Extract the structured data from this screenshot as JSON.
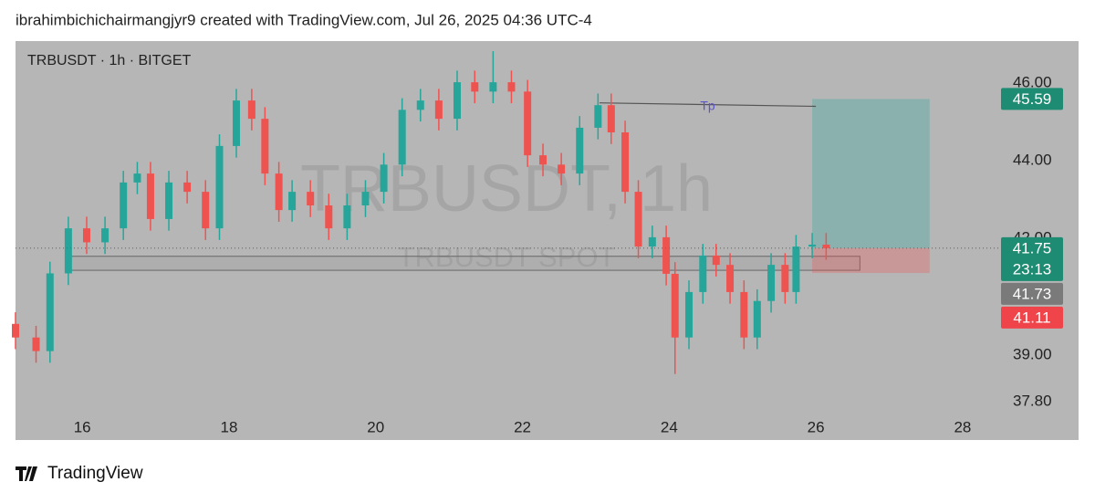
{
  "header": "ibrahimbichichairmangjyr9 created with TradingView.com, Jul 26, 2025 04:36 UTC-4",
  "footer": "TradingView",
  "chart_data": {
    "type": "candlestick",
    "title": "TRBUSDT · 1h · BITGET",
    "watermark": "TRBUSDT, 1h",
    "watermark_sub": "TRBUSDT SPOT",
    "x": [
      15.09,
      15.37,
      15.56,
      15.81,
      16.06,
      16.31,
      16.56,
      16.75,
      16.93,
      17.18,
      17.43,
      17.68,
      17.87,
      18.1,
      18.31,
      18.49,
      18.68,
      18.86,
      19.11,
      19.36,
      19.61,
      19.86,
      20.11,
      20.36,
      20.61,
      20.86,
      21.11,
      21.35,
      21.6,
      21.85,
      22.07,
      22.28,
      22.53,
      22.78,
      23.03,
      23.21,
      23.4,
      23.58,
      23.77,
      23.96,
      24.08,
      24.27,
      24.46,
      24.64,
      24.83,
      25.02,
      25.2,
      25.39,
      25.58,
      25.73,
      25.95,
      26.14
    ],
    "open": [
      39.8,
      39.45,
      39.1,
      41.1,
      42.26,
      41.9,
      42.26,
      43.44,
      43.67,
      42.5,
      43.44,
      43.2,
      42.26,
      44.38,
      45.55,
      45.08,
      43.67,
      42.73,
      43.2,
      42.85,
      42.26,
      42.85,
      43.2,
      43.9,
      45.31,
      45.55,
      45.08,
      46.02,
      45.78,
      46.02,
      45.78,
      44.14,
      43.9,
      43.67,
      44.85,
      45.43,
      44.73,
      43.2,
      41.79,
      42.03,
      41.09,
      39.45,
      40.62,
      41.56,
      41.32,
      40.62,
      39.45,
      40.39,
      41.32,
      40.62,
      41.79,
      41.84
    ],
    "high": [
      40.1,
      39.75,
      41.4,
      42.56,
      42.56,
      42.56,
      43.74,
      43.97,
      43.97,
      43.74,
      43.74,
      43.5,
      44.68,
      45.85,
      45.85,
      45.38,
      43.97,
      43.5,
      43.5,
      43.15,
      43.15,
      43.5,
      44.2,
      45.61,
      45.85,
      45.85,
      46.32,
      46.32,
      46.82,
      46.32,
      46.08,
      44.44,
      44.2,
      45.15,
      45.73,
      45.73,
      45.03,
      43.5,
      42.33,
      42.33,
      41.39,
      40.92,
      41.86,
      41.86,
      41.62,
      40.92,
      40.69,
      41.62,
      41.62,
      42.09,
      42.14,
      42.14
    ],
    "low": [
      39.15,
      38.8,
      38.8,
      40.8,
      41.6,
      41.6,
      41.96,
      43.14,
      42.2,
      42.2,
      42.9,
      41.96,
      41.96,
      44.08,
      44.78,
      43.37,
      42.43,
      42.43,
      42.55,
      41.96,
      41.96,
      42.55,
      42.9,
      43.6,
      45.01,
      44.78,
      44.78,
      45.48,
      45.48,
      45.48,
      43.84,
      43.6,
      43.37,
      43.37,
      44.55,
      44.43,
      42.9,
      41.49,
      41.49,
      40.79,
      38.51,
      39.15,
      40.32,
      41.02,
      40.32,
      39.15,
      39.15,
      40.09,
      40.32,
      40.32,
      41.49,
      41.45
    ],
    "close": [
      39.45,
      39.1,
      41.1,
      42.26,
      41.9,
      42.26,
      43.44,
      43.67,
      42.5,
      43.44,
      43.2,
      42.26,
      44.38,
      45.55,
      45.08,
      43.67,
      42.73,
      43.2,
      42.85,
      42.26,
      42.85,
      43.2,
      43.9,
      45.31,
      45.55,
      45.08,
      46.02,
      45.78,
      46.02,
      45.78,
      44.14,
      43.9,
      43.67,
      44.85,
      45.43,
      44.73,
      43.2,
      41.79,
      42.03,
      41.09,
      39.45,
      40.62,
      41.56,
      41.32,
      40.62,
      39.45,
      40.39,
      41.32,
      40.62,
      41.79,
      41.84,
      41.75
    ],
    "up_color": "#26a69a",
    "down_color": "#ef5350",
    "xlim": [
      15.09,
      28.25
    ],
    "xticks": [
      16,
      18,
      20,
      22,
      24,
      26,
      28
    ],
    "ylim": [
      37.61,
      47.08
    ],
    "yticks": [
      {
        "value": 37.8,
        "label": "37.80"
      },
      {
        "value": 39,
        "label": "39.00"
      },
      {
        "value": 42,
        "label": "42.00"
      },
      {
        "value": 44,
        "label": "44.00"
      },
      {
        "value": 46,
        "label": "46.00"
      }
    ],
    "zone": {
      "x_start": 15.8,
      "x_end": 26.6,
      "top": 41.54,
      "bottom": 41.18
    },
    "tp_line": {
      "label": "Tp",
      "x_start": 23.05,
      "x_end": 26.0,
      "y_start": 45.49,
      "y_end": 45.4
    },
    "position": {
      "x_start": 25.95,
      "x_end": 27.55,
      "target": 45.59,
      "entry": 41.75,
      "stop": 41.11
    },
    "price_labels": [
      {
        "value": 45.59,
        "color": "#1e8c73"
      },
      {
        "value": 41.75,
        "color": "#1e8c73"
      },
      {
        "value": 41.73,
        "color": "#7a7a7a"
      },
      {
        "value": 41.11,
        "color": "#f0444b"
      }
    ],
    "countdown": "23:13"
  }
}
